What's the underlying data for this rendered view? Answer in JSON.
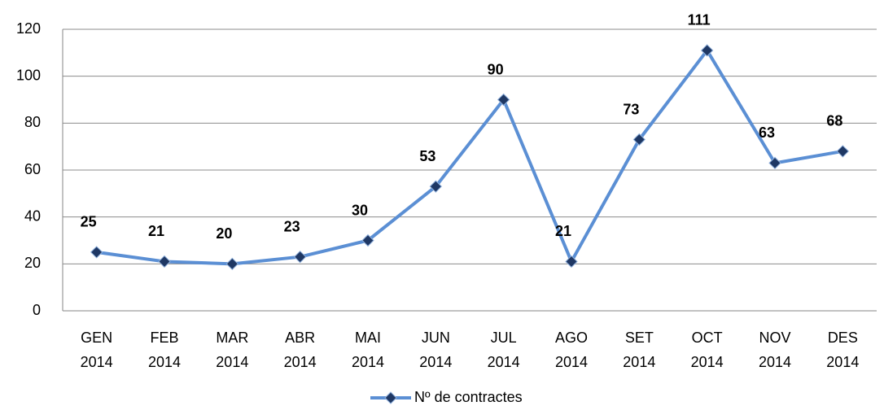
{
  "chart_data": {
    "type": "line",
    "categories": [
      "GEN 2014",
      "FEB 2014",
      "MAR 2014",
      "ABR 2014",
      "MAI 2014",
      "JUN 2014",
      "JUL 2014",
      "AGO 2014",
      "SET 2014",
      "OCT 2014",
      "NOV 2014",
      "DES 2014"
    ],
    "series": [
      {
        "name": "Nº de contractes",
        "color": "#5b8fd4",
        "marker_color": "#1f3864",
        "values": [
          25,
          21,
          20,
          23,
          30,
          53,
          90,
          21,
          73,
          111,
          63,
          68
        ]
      }
    ],
    "ylim": [
      0,
      120
    ],
    "yticks": [
      0,
      20,
      40,
      60,
      80,
      100,
      120
    ],
    "grid": true,
    "legend": "bottom"
  }
}
